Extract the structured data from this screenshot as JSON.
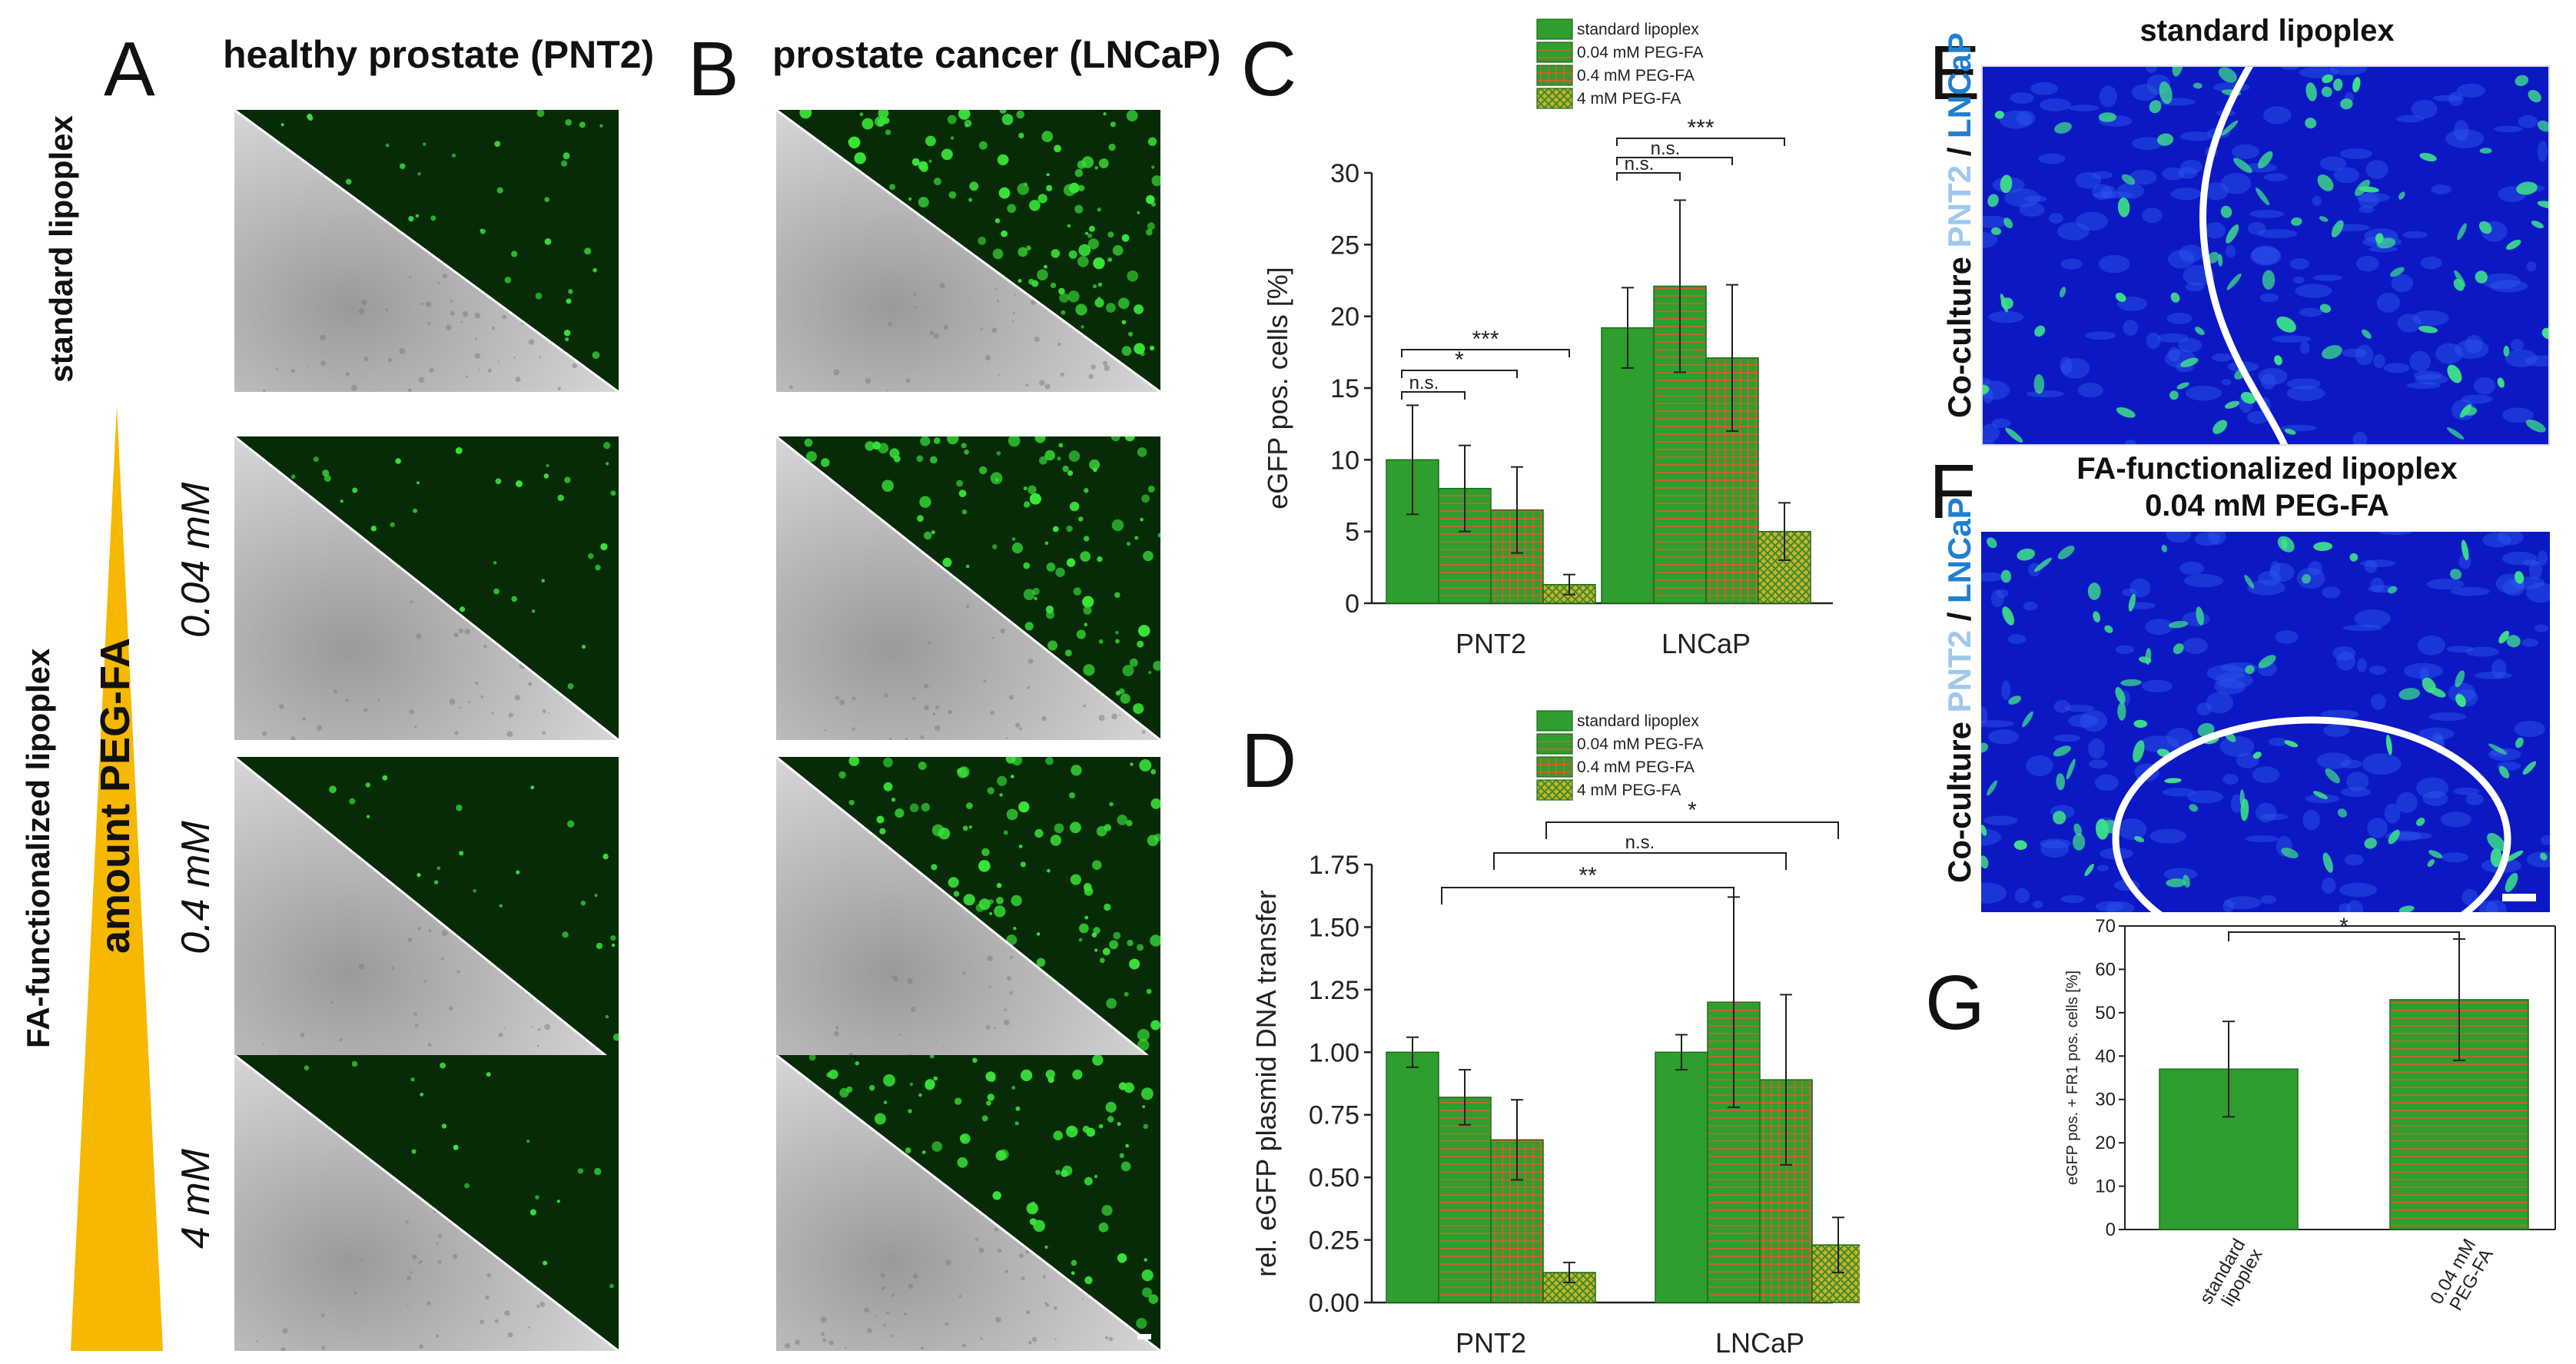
{
  "panels": {
    "A": "A",
    "B": "B",
    "C": "C",
    "D": "D",
    "E": "E",
    "F": "F",
    "G": "G"
  },
  "col_titles": {
    "a": "healthy prostate (PNT2)",
    "b": "prostate cancer (LNCaP)"
  },
  "row_labels": {
    "standard": "standard lipoplex",
    "functionalized": "FA-functionalized lipoplex",
    "amount": "amount PEG-FA"
  },
  "concentrations": [
    "0.04 mM",
    "0.4 mM",
    "4 mM"
  ],
  "coculture": {
    "label": "Co-culture",
    "pnt2": "PNT2",
    "slash": " / ",
    "lncap": "LNCaP"
  },
  "panel_e_title": "standard lipoplex",
  "panel_f_title": {
    "line1": "FA-functionalized lipoplex",
    "line2": "0.04 mM PEG-FA"
  },
  "colors": {
    "green": "#2e9e2e",
    "hatch_line": "#e05a28",
    "cyan_text": "#9fc8ec",
    "blue_text": "#1f7fd0",
    "triangle": "#f6b800"
  },
  "chart_data": [
    {
      "id": "C",
      "type": "bar",
      "categories": [
        "PNT2",
        "LNCaP"
      ],
      "ylabel": "eGFP pos. cells [%]",
      "ylim": [
        0,
        30
      ],
      "yticks": [
        0,
        5,
        10,
        15,
        20,
        25,
        30
      ],
      "legend": [
        "standard lipoplex",
        "0.04 mM PEG-FA",
        "0.4 mM PEG-FA",
        "4 mM PEG-FA"
      ],
      "series": [
        {
          "name": "standard lipoplex",
          "values": [
            10.0,
            19.2
          ],
          "errors": [
            3.8,
            2.8
          ]
        },
        {
          "name": "0.04 mM PEG-FA",
          "values": [
            8.0,
            22.1
          ],
          "errors": [
            3.0,
            6.0
          ]
        },
        {
          "name": "0.4 mM PEG-FA",
          "values": [
            6.5,
            17.1
          ],
          "errors": [
            3.0,
            5.1
          ]
        },
        {
          "name": "4 mM PEG-FA",
          "values": [
            1.3,
            5.0
          ],
          "errors": [
            0.7,
            2.0
          ]
        }
      ],
      "significance": [
        {
          "group": 0,
          "from": 0,
          "to": 1,
          "label": "n.s."
        },
        {
          "group": 0,
          "from": 0,
          "to": 2,
          "label": "*"
        },
        {
          "group": 0,
          "from": 0,
          "to": 3,
          "label": "***"
        },
        {
          "group": 1,
          "from": 0,
          "to": 1,
          "label": "n.s."
        },
        {
          "group": 1,
          "from": 0,
          "to": 2,
          "label": "n.s."
        },
        {
          "group": 1,
          "from": 0,
          "to": 3,
          "label": "***"
        }
      ]
    },
    {
      "id": "D",
      "type": "bar",
      "categories": [
        "PNT2",
        "LNCaP"
      ],
      "ylabel": "rel. eGFP plasmid DNA transfer",
      "ylim": [
        0,
        1.75
      ],
      "yticks": [
        "0.00",
        "0.25",
        "0.50",
        "0.75",
        "1.00",
        "1.25",
        "1.50",
        "1.75"
      ],
      "legend": [
        "standard lipoplex",
        "0.04 mM PEG-FA",
        "0.4 mM PEG-FA",
        "4 mM PEG-FA"
      ],
      "series": [
        {
          "name": "standard lipoplex",
          "values": [
            1.0,
            1.0
          ],
          "errors": [
            0.06,
            0.07
          ]
        },
        {
          "name": "0.04 mM PEG-FA",
          "values": [
            0.82,
            1.2
          ],
          "errors": [
            0.11,
            0.42
          ]
        },
        {
          "name": "0.4 mM PEG-FA",
          "values": [
            0.65,
            0.89
          ],
          "errors": [
            0.16,
            0.34
          ]
        },
        {
          "name": "4 mM PEG-FA",
          "values": [
            0.12,
            0.23
          ],
          "errors": [
            0.04,
            0.11
          ]
        }
      ],
      "significance": [
        {
          "from_cat": 0,
          "from_s": 1,
          "to_cat": 1,
          "to_s": 1,
          "label": "**"
        },
        {
          "from_cat": 0,
          "from_s": 2,
          "to_cat": 1,
          "to_s": 2,
          "label": "n.s."
        },
        {
          "from_cat": 0,
          "from_s": 3,
          "to_cat": 1,
          "to_s": 3,
          "label": "*"
        }
      ]
    },
    {
      "id": "G",
      "type": "bar",
      "categories": [
        "standard\nlipoplex",
        "0.04 mM\nPEG-FA"
      ],
      "ylabel": "eGFP pos. + FR1 pos. cells [%]",
      "ylim": [
        0,
        70
      ],
      "yticks": [
        0,
        10,
        20,
        30,
        40,
        50,
        60,
        70
      ],
      "series": [
        {
          "values": [
            37,
            53
          ],
          "errors": [
            11,
            14
          ]
        }
      ],
      "significance": [
        {
          "from": 0,
          "to": 1,
          "label": "*"
        }
      ]
    }
  ]
}
